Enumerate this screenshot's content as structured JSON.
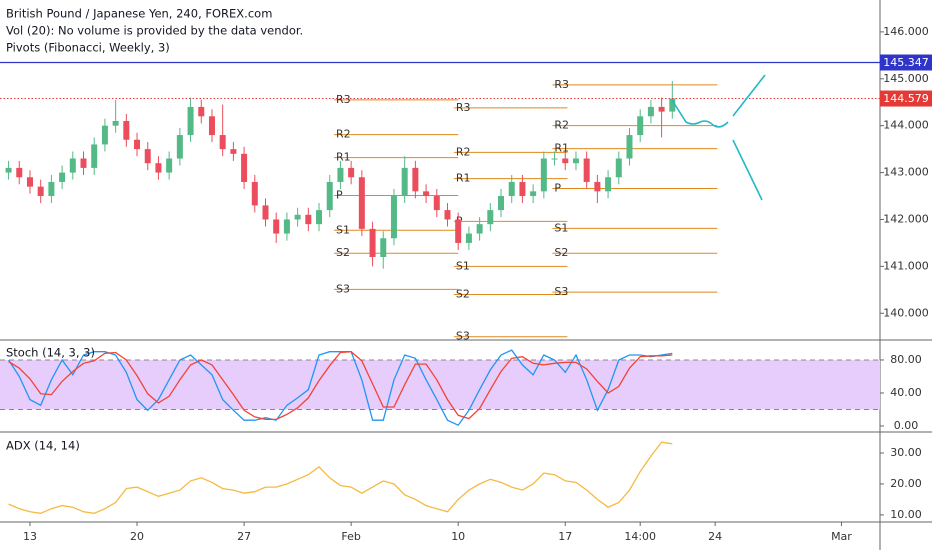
{
  "chart_data": [
    {
      "type": "candlestick",
      "title": "British Pound / Japanese Yen, 240, FOREX.com",
      "subtitles": [
        "Vol (20): No volume is provided by the data vendor.",
        "Pivots (Fibonacci, Weekly, 3)"
      ],
      "up_color": "#53b987",
      "down_color": "#eb4d5c",
      "xlim": [
        -1.4,
        39.7
      ],
      "ylim": [
        139.43,
        146.68
      ],
      "yticks": [
        {
          "value": 140,
          "label": "140.000"
        },
        {
          "value": 141,
          "label": "141.000"
        },
        {
          "value": 142,
          "label": "142.000"
        },
        {
          "value": 143,
          "label": "143.000"
        },
        {
          "value": 144,
          "label": "144.000"
        },
        {
          "value": 145,
          "label": "145.000"
        },
        {
          "value": 146,
          "label": "146.000"
        }
      ],
      "grid": false,
      "x": [
        -1,
        -0.5,
        0,
        0.5,
        1,
        1.5,
        2,
        2.5,
        3,
        3.5,
        4,
        4.5,
        5,
        5.5,
        6,
        6.5,
        7,
        7.5,
        8,
        8.5,
        9,
        9.5,
        10,
        10.5,
        11,
        11.5,
        12,
        12.5,
        13,
        13.5,
        14,
        14.5,
        15,
        15.5,
        16,
        16.5,
        17,
        17.5,
        18,
        18.5,
        19,
        19.5,
        20,
        20.5,
        21,
        21.5,
        22,
        22.5,
        23,
        23.5,
        24,
        24.5,
        25,
        25.5,
        26,
        26.5,
        27,
        27.5,
        28,
        28.5,
        29,
        29.5,
        30
      ],
      "open": [
        143.0,
        143.1,
        142.9,
        142.7,
        142.5,
        142.8,
        143.0,
        143.3,
        143.1,
        143.6,
        144.0,
        144.1,
        143.7,
        143.5,
        143.2,
        143.0,
        143.3,
        143.8,
        144.4,
        144.2,
        143.8,
        143.5,
        143.4,
        142.8,
        142.3,
        142.0,
        141.7,
        142.0,
        142.1,
        141.9,
        142.2,
        142.8,
        143.1,
        142.9,
        141.8,
        141.2,
        141.6,
        142.5,
        143.1,
        142.6,
        142.5,
        142.2,
        142.0,
        141.5,
        141.7,
        141.9,
        142.2,
        142.5,
        142.8,
        142.5,
        142.6,
        143.3,
        143.3,
        143.2,
        143.3,
        142.8,
        142.6,
        142.9,
        143.3,
        143.8,
        144.2,
        144.4,
        144.3
      ],
      "high": [
        143.25,
        143.25,
        143.05,
        142.85,
        142.95,
        143.15,
        143.45,
        143.45,
        143.75,
        144.15,
        144.55,
        144.25,
        143.85,
        143.65,
        143.35,
        143.45,
        143.95,
        144.6,
        144.55,
        144.35,
        144.45,
        143.65,
        143.55,
        142.95,
        142.45,
        142.15,
        142.15,
        142.25,
        142.25,
        142.35,
        142.95,
        143.25,
        143.25,
        143.05,
        141.95,
        141.75,
        142.65,
        143.35,
        143.25,
        142.75,
        142.65,
        142.35,
        142.15,
        141.85,
        142.05,
        142.35,
        142.65,
        142.95,
        142.95,
        142.75,
        143.45,
        143.45,
        143.45,
        143.45,
        143.45,
        142.95,
        143.05,
        143.45,
        143.95,
        144.35,
        144.55,
        144.6,
        144.95
      ],
      "low": [
        142.85,
        142.75,
        142.55,
        142.35,
        142.35,
        142.65,
        142.85,
        142.95,
        142.95,
        143.45,
        143.85,
        143.55,
        143.35,
        143.05,
        142.85,
        142.85,
        143.15,
        143.65,
        144.05,
        143.65,
        143.35,
        143.25,
        142.65,
        142.15,
        141.85,
        141.5,
        141.55,
        141.85,
        141.75,
        141.75,
        142.05,
        142.65,
        142.75,
        141.65,
        141.0,
        140.95,
        141.45,
        142.35,
        142.45,
        142.35,
        142.05,
        141.85,
        141.35,
        141.35,
        141.55,
        141.75,
        142.05,
        142.35,
        142.35,
        142.35,
        142.45,
        143.15,
        143.05,
        143.05,
        142.65,
        142.35,
        142.45,
        142.75,
        143.15,
        143.65,
        144.05,
        143.75,
        144.15
      ],
      "close": [
        143.1,
        142.9,
        142.7,
        142.5,
        142.8,
        143.0,
        143.3,
        143.1,
        143.6,
        144.0,
        144.1,
        143.7,
        143.5,
        143.2,
        143.0,
        143.3,
        143.8,
        144.4,
        144.2,
        143.8,
        143.5,
        143.4,
        142.8,
        142.3,
        142.0,
        141.7,
        142.0,
        142.1,
        141.9,
        142.2,
        142.8,
        143.1,
        142.9,
        141.8,
        141.2,
        141.6,
        142.5,
        143.1,
        142.6,
        142.5,
        142.2,
        142.0,
        141.5,
        141.7,
        141.9,
        142.2,
        142.5,
        142.8,
        142.5,
        142.6,
        143.3,
        143.3,
        143.2,
        143.3,
        142.8,
        142.6,
        142.9,
        143.3,
        143.8,
        144.2,
        144.4,
        144.3,
        144.579
      ],
      "hlines": [
        {
          "value": 145.347,
          "color": "#2f35c8",
          "style": "solid"
        },
        {
          "value": 144.579,
          "color": "#e53935",
          "style": "dotted"
        }
      ],
      "pivots": {
        "color": "#e08a1e",
        "labels": [
          "R3",
          "R2",
          "R1",
          "P",
          "S1",
          "S2",
          "S3"
        ],
        "weeks": [
          {
            "x": [
              14.2,
              20
            ],
            "levels": [
              144.55,
              143.81,
              143.32,
              142.51,
              141.77,
              141.28,
              140.51
            ]
          },
          {
            "x": [
              19.8,
              25.1
            ],
            "levels": [
              144.38,
              143.43,
              142.87,
              141.96,
              141.0,
              140.4,
              139.5
            ]
          },
          {
            "x": [
              24.4,
              32.1
            ],
            "levels": [
              144.87,
              144.0,
              143.51,
              142.66,
              141.81,
              141.28,
              140.45
            ]
          }
        ]
      }
    },
    {
      "type": "line",
      "title": "Stoch (14, 3, 3)",
      "xlim": [
        -1.4,
        39.7
      ],
      "ylim": [
        -7.3,
        104.2
      ],
      "yticks": [
        {
          "value": 0,
          "label": "0.00"
        },
        {
          "value": 40,
          "label": "40.00"
        },
        {
          "value": 80,
          "label": "80.00"
        }
      ],
      "bands": [
        20,
        80
      ],
      "band_color": "#e6cdfb",
      "x": [
        -1,
        -0.5,
        0,
        0.5,
        1,
        1.5,
        2,
        2.5,
        3,
        3.5,
        4,
        4.5,
        5,
        5.5,
        6,
        6.5,
        7,
        7.5,
        8,
        8.5,
        9,
        9.5,
        10,
        10.5,
        11,
        11.5,
        12,
        12.5,
        13,
        13.5,
        14,
        14.5,
        15,
        15.5,
        16,
        16.5,
        17,
        17.5,
        18,
        18.5,
        19,
        19.5,
        20,
        20.5,
        21,
        21.5,
        22,
        22.5,
        23,
        23.5,
        24,
        24.5,
        25,
        25.5,
        26,
        26.5,
        27,
        27.5,
        28,
        28.5,
        29,
        29.5,
        30
      ],
      "series": [
        {
          "color": "#2196f3",
          "values": [
            80,
            60,
            32,
            25,
            56,
            80,
            62,
            86,
            90,
            90,
            86,
            65,
            32,
            19,
            32,
            56,
            80,
            86,
            74,
            62,
            32,
            19,
            7,
            7,
            10,
            7,
            25,
            34,
            44,
            86,
            90,
            90,
            90,
            56,
            7,
            7,
            56,
            86,
            82,
            56,
            32,
            7,
            1,
            19,
            44,
            68,
            86,
            92,
            74,
            62,
            86,
            80,
            65,
            86,
            56,
            19,
            44,
            80,
            86,
            86,
            84,
            86,
            88
          ]
        },
        {
          "color": "#f44336",
          "values": [
            78,
            70,
            57,
            39,
            38,
            54,
            66,
            76,
            79,
            88,
            89,
            80,
            61,
            39,
            28,
            36,
            56,
            74,
            80,
            74,
            56,
            38,
            19,
            11,
            8,
            8,
            14,
            22,
            34,
            55,
            73,
            89,
            90,
            79,
            51,
            23,
            23,
            50,
            75,
            75,
            56,
            32,
            13,
            9,
            21,
            44,
            66,
            82,
            84,
            76,
            74,
            76,
            77,
            77,
            69,
            54,
            40,
            48,
            70,
            84,
            85,
            85,
            86
          ]
        }
      ]
    },
    {
      "type": "line",
      "title": "ADX (14, 14)",
      "xlim": [
        -1.4,
        39.7
      ],
      "ylim": [
        7.7,
        36.8
      ],
      "yticks": [
        {
          "value": 10,
          "label": "10.00"
        },
        {
          "value": 20,
          "label": "20.00"
        },
        {
          "value": 30,
          "label": "30.00"
        }
      ],
      "xticks": [
        {
          "value": 0,
          "label": "13"
        },
        {
          "value": 5,
          "label": "20"
        },
        {
          "value": 10,
          "label": "27"
        },
        {
          "value": 15,
          "label": "Feb"
        },
        {
          "value": 20,
          "label": "10"
        },
        {
          "value": 25,
          "label": "17"
        },
        {
          "value": 28.5,
          "label": "14:00"
        },
        {
          "value": 32,
          "label": "24"
        },
        {
          "value": 37.9,
          "label": "Mar"
        }
      ],
      "x": [
        -1,
        -0.5,
        0,
        0.5,
        1,
        1.5,
        2,
        2.5,
        3,
        3.5,
        4,
        4.5,
        5,
        5.5,
        6,
        6.5,
        7,
        7.5,
        8,
        8.5,
        9,
        9.5,
        10,
        10.5,
        11,
        11.5,
        12,
        12.5,
        13,
        13.5,
        14,
        14.5,
        15,
        15.5,
        16,
        16.5,
        17,
        17.5,
        18,
        18.5,
        19,
        19.5,
        20,
        20.5,
        21,
        21.5,
        22,
        22.5,
        23,
        23.5,
        24,
        24.5,
        25,
        25.5,
        26,
        26.5,
        27,
        27.5,
        28,
        28.5,
        29,
        29.5,
        30
      ],
      "series": [
        {
          "color": "#f5b942",
          "values": [
            13.5,
            12,
            11,
            10.5,
            12,
            13,
            12.5,
            11,
            10.5,
            12,
            14,
            18.5,
            19,
            17.5,
            16,
            17,
            18,
            21,
            22,
            20.5,
            18.5,
            18,
            17,
            17.5,
            19,
            19,
            20,
            21.5,
            23,
            25.5,
            22,
            19.5,
            19,
            17,
            19,
            21,
            20,
            16.5,
            15,
            13,
            12,
            11,
            15,
            18,
            20,
            21.5,
            20.5,
            19,
            18,
            20,
            23.5,
            23,
            21,
            20.5,
            18,
            15,
            12.5,
            14,
            18,
            24,
            29,
            33.5,
            33
          ]
        }
      ]
    }
  ]
}
